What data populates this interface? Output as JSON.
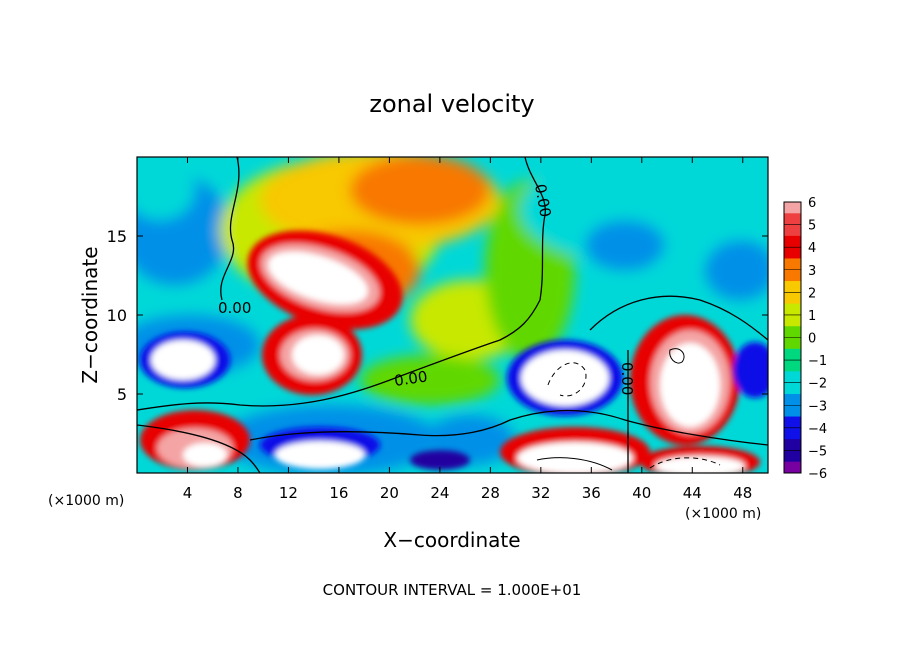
{
  "chart_data": {
    "type": "heatmap",
    "title": "zonal velocity",
    "xlabel": "X−coordinate",
    "ylabel": "Z−coordinate",
    "x_units_left": "(×1000 m)",
    "x_units_right": "(×1000 m)",
    "footer": "CONTOUR INTERVAL = 1.000E+01",
    "xlim": [
      0,
      50
    ],
    "ylim": [
      0,
      20
    ],
    "x_ticks": [
      4,
      8,
      12,
      16,
      20,
      24,
      28,
      32,
      36,
      40,
      44,
      48
    ],
    "x_tick_labels": [
      "4",
      "8",
      "12",
      "16",
      "20",
      "24",
      "28",
      "32",
      "36",
      "40",
      "44",
      "48"
    ],
    "y_ticks": [
      5,
      10,
      15
    ],
    "y_tick_labels": [
      "5",
      "10",
      "15"
    ],
    "colorbar": {
      "min": -6,
      "max": 6,
      "labels": [
        "6",
        "5",
        "4",
        "3",
        "2",
        "1",
        "0",
        "−1",
        "−2",
        "−3",
        "−4",
        "−5",
        "−6"
      ],
      "colors": [
        "#f4a4a4",
        "#ee4040",
        "#e80000",
        "#f87800",
        "#f8c800",
        "#c8e800",
        "#60d800",
        "#00d880",
        "#00d8d8",
        "#0090e8",
        "#1010e8",
        "#2000a0",
        "#7800a0"
      ],
      "above_max_color": "#ffffff"
    },
    "contour_labels": [
      "0.00",
      "0.00",
      "0.00",
      "0.00"
    ]
  }
}
